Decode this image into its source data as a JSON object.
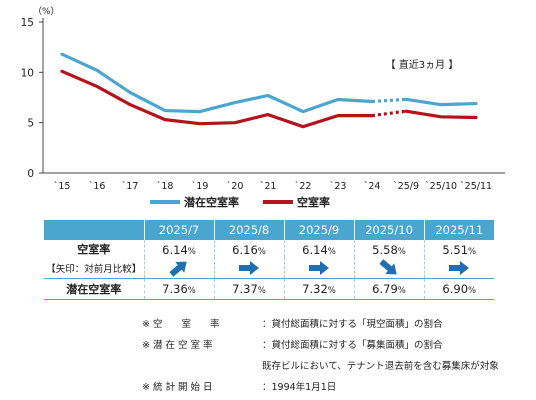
{
  "chart_data": {
    "type": "line",
    "x": [
      "`15",
      "`16",
      "`17",
      "`18",
      "`19",
      "`20",
      "`21",
      "`22",
      "`23",
      "`24",
      "`25/9",
      "`25/10",
      "`25/11"
    ],
    "series": [
      {
        "name": "潜在空室率",
        "color": "#4ba6cf",
        "values": [
          11.8,
          10.2,
          8.0,
          6.2,
          6.1,
          7.0,
          7.7,
          6.1,
          7.3,
          7.1,
          7.32,
          6.79,
          6.9
        ]
      },
      {
        "name": "空室率",
        "color": "#b5121b",
        "values": [
          10.1,
          8.6,
          6.8,
          5.3,
          4.9,
          5.0,
          5.8,
          4.6,
          5.7,
          5.7,
          6.14,
          5.58,
          5.51
        ]
      }
    ],
    "ylim": [
      0,
      15
    ],
    "yticks": [
      "0",
      "5",
      "10",
      "15"
    ],
    "yunit": "（%）",
    "annotation": "【 直近3ヵ月 】"
  },
  "table": {
    "headers": [
      "2025/7",
      "2025/8",
      "2025/9",
      "2025/10",
      "2025/11"
    ],
    "vacancy_label": "空室率",
    "arrow_label": "【矢印：対前月比較】",
    "latent_label": "潜在空室率",
    "vacancy": [
      {
        "num": "6.14",
        "pct": "%",
        "arrow": "up"
      },
      {
        "num": "6.16",
        "pct": "%",
        "arrow": "right"
      },
      {
        "num": "6.14",
        "pct": "%",
        "arrow": "right"
      },
      {
        "num": "5.58",
        "pct": "%",
        "arrow": "down"
      },
      {
        "num": "5.51",
        "pct": "%",
        "arrow": "right"
      }
    ],
    "latent": [
      {
        "num": "7.36",
        "pct": "%"
      },
      {
        "num": "7.37",
        "pct": "%"
      },
      {
        "num": "7.32",
        "pct": "%"
      },
      {
        "num": "6.79",
        "pct": "%"
      },
      {
        "num": "6.90",
        "pct": "%"
      }
    ],
    "arrow_color": "#1f6fb2"
  },
  "notes": [
    {
      "key": "※ 空　　室　　率",
      "text": "：貸付総面積に対する「現空面積」の割合"
    },
    {
      "key": "※ 潜 在 空 室 率",
      "text": "：貸付総面積に対する「募集面積」の割合"
    },
    {
      "key": "",
      "text": "既存ビルにおいて、テナント退去前を含む募集床が対象"
    },
    {
      "key": "※ 統 計 開 始 日",
      "text": "：1994年1月1日"
    }
  ]
}
